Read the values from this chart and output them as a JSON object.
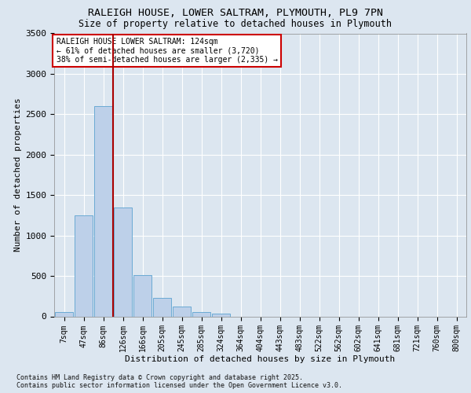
{
  "title_line1": "RALEIGH HOUSE, LOWER SALTRAM, PLYMOUTH, PL9 7PN",
  "title_line2": "Size of property relative to detached houses in Plymouth",
  "xlabel": "Distribution of detached houses by size in Plymouth",
  "ylabel": "Number of detached properties",
  "bar_color": "#bdd0e9",
  "bar_edge_color": "#6aaad4",
  "bg_color": "#dce6f0",
  "grid_color": "#ffffff",
  "categories": [
    "7sqm",
    "47sqm",
    "86sqm",
    "126sqm",
    "166sqm",
    "205sqm",
    "245sqm",
    "285sqm",
    "324sqm",
    "364sqm",
    "404sqm",
    "443sqm",
    "483sqm",
    "522sqm",
    "562sqm",
    "602sqm",
    "641sqm",
    "681sqm",
    "721sqm",
    "760sqm",
    "800sqm"
  ],
  "values": [
    50,
    1250,
    2600,
    1350,
    510,
    230,
    120,
    50,
    30,
    0,
    0,
    0,
    0,
    0,
    0,
    0,
    0,
    0,
    0,
    0,
    0
  ],
  "ylim": [
    0,
    3500
  ],
  "yticks": [
    0,
    500,
    1000,
    1500,
    2000,
    2500,
    3000,
    3500
  ],
  "vline_pos": 2.5,
  "vline_color": "#aa0000",
  "annotation_title": "RALEIGH HOUSE LOWER SALTRAM: 124sqm",
  "annotation_line2": "← 61% of detached houses are smaller (3,720)",
  "annotation_line3": "38% of semi-detached houses are larger (2,335) →",
  "annotation_bg": "#ffffff",
  "annotation_border": "#cc0000",
  "footer_line1": "Contains HM Land Registry data © Crown copyright and database right 2025.",
  "footer_line2": "Contains public sector information licensed under the Open Government Licence v3.0.",
  "title_fontsize": 9.5,
  "subtitle_fontsize": 8.5,
  "ylabel_fontsize": 8,
  "xlabel_fontsize": 8,
  "tick_fontsize": 7,
  "annot_fontsize": 7,
  "footer_fontsize": 6
}
